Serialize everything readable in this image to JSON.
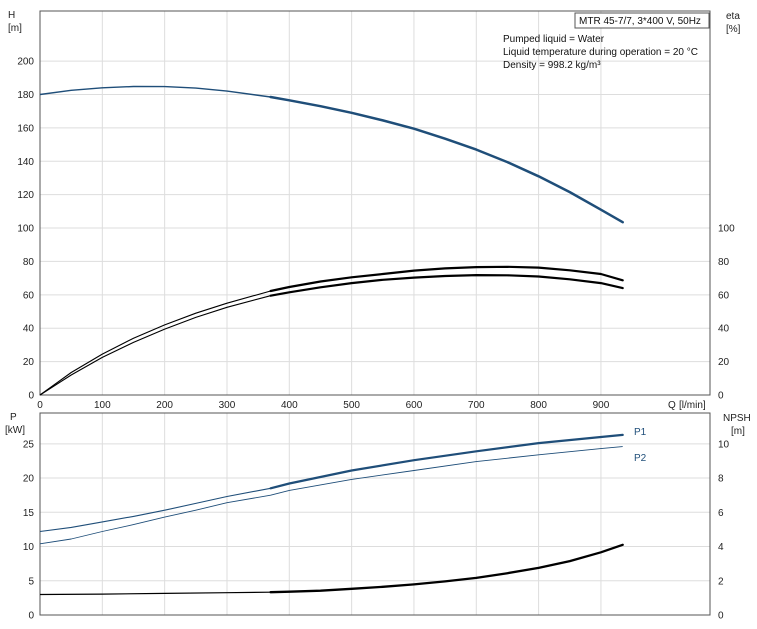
{
  "pump_info": {
    "model": "MTR 45-7/7, 3*400 V, 50Hz",
    "lines": [
      "Pumped liquid = Water",
      "Liquid temperature during operation = 20 °C",
      "Density = 998.2 kg/m³"
    ]
  },
  "colors": {
    "blue": "#1f4e79",
    "black": "#000000",
    "grid": "#dddddd",
    "axis": "#555555"
  },
  "chart_data": [
    {
      "type": "line",
      "name": "upper",
      "x_axis": {
        "label_parts": [
          "Q",
          "[l/min]"
        ],
        "range": [
          0,
          1075
        ],
        "ticks": [
          0,
          100,
          200,
          300,
          400,
          500,
          600,
          700,
          800,
          900
        ]
      },
      "y_left": {
        "label_parts": [
          "H",
          "[m]"
        ],
        "range": [
          0,
          230
        ],
        "ticks": [
          0,
          20,
          40,
          60,
          80,
          100,
          120,
          140,
          160,
          180,
          200
        ]
      },
      "y_right": {
        "label_parts": [
          "eta",
          "[%]"
        ],
        "range": [
          0,
          230
        ],
        "ticks": [
          0,
          20,
          40,
          60,
          80,
          100
        ]
      },
      "grid": true,
      "series": [
        {
          "id": "H",
          "axis": "left",
          "color_key": "blue",
          "width": 1.4,
          "bold_from": 370,
          "points": [
            [
              0,
              180
            ],
            [
              50,
              182.5
            ],
            [
              100,
              184
            ],
            [
              150,
              184.8
            ],
            [
              200,
              184.7
            ],
            [
              250,
              183.8
            ],
            [
              300,
              182
            ],
            [
              370,
              178.5
            ],
            [
              400,
              176.5
            ],
            [
              450,
              173
            ],
            [
              500,
              169
            ],
            [
              550,
              164.5
            ],
            [
              600,
              159.5
            ],
            [
              650,
              153.5
            ],
            [
              700,
              147
            ],
            [
              750,
              139.5
            ],
            [
              800,
              131
            ],
            [
              850,
              121.5
            ],
            [
              900,
              111
            ],
            [
              935,
              103.5
            ]
          ]
        },
        {
          "id": "eta",
          "axis": "right",
          "color_key": "black",
          "width": 1.1,
          "bold_from": 370,
          "points": [
            [
              0,
              0
            ],
            [
              50,
              12
            ],
            [
              100,
              22.5
            ],
            [
              150,
              31.5
            ],
            [
              200,
              39.5
            ],
            [
              250,
              46.5
            ],
            [
              300,
              52.5
            ],
            [
              370,
              59.5
            ],
            [
              400,
              61.5
            ],
            [
              450,
              64.5
            ],
            [
              500,
              67
            ],
            [
              550,
              69
            ],
            [
              600,
              70.3
            ],
            [
              650,
              71.3
            ],
            [
              700,
              71.8
            ],
            [
              750,
              71.7
            ],
            [
              800,
              71
            ],
            [
              850,
              69.3
            ],
            [
              900,
              67
            ],
            [
              935,
              64
            ]
          ]
        },
        {
          "id": "eta-upper",
          "axis": "right",
          "color_key": "black",
          "width": 1.1,
          "bold_from": 370,
          "points": [
            [
              0,
              0
            ],
            [
              50,
              13.5
            ],
            [
              100,
              24.5
            ],
            [
              150,
              34
            ],
            [
              200,
              42
            ],
            [
              250,
              49
            ],
            [
              300,
              55
            ],
            [
              370,
              62.3
            ],
            [
              400,
              64.7
            ],
            [
              450,
              68
            ],
            [
              500,
              70.5
            ],
            [
              550,
              72.5
            ],
            [
              600,
              74.5
            ],
            [
              650,
              75.8
            ],
            [
              700,
              76.6
            ],
            [
              750,
              76.8
            ],
            [
              800,
              76.3
            ],
            [
              850,
              74.7
            ],
            [
              900,
              72.5
            ],
            [
              935,
              68.7
            ]
          ]
        }
      ]
    },
    {
      "type": "line",
      "name": "lower",
      "x_axis": {
        "range": [
          0,
          1075
        ],
        "ticks": [
          0,
          100,
          200,
          300,
          400,
          500,
          600,
          700,
          800,
          900
        ]
      },
      "y_left": {
        "label_parts": [
          "P",
          "[kW]"
        ],
        "range": [
          0,
          29.5
        ],
        "ticks": [
          0,
          5,
          10,
          15,
          20,
          25
        ]
      },
      "y_right": {
        "label_parts": [
          "NPSH",
          "[m]"
        ],
        "range": [
          0,
          11.8
        ],
        "ticks": [
          0,
          2,
          4,
          6,
          8,
          10
        ]
      },
      "grid": true,
      "series": [
        {
          "id": "P1",
          "name": "P1",
          "axis": "left",
          "color_key": "blue",
          "width": 1.1,
          "bold_from": 370,
          "points": [
            [
              0,
              12.2
            ],
            [
              50,
              12.8
            ],
            [
              100,
              13.6
            ],
            [
              150,
              14.4
            ],
            [
              200,
              15.3
            ],
            [
              250,
              16.3
            ],
            [
              300,
              17.3
            ],
            [
              370,
              18.5
            ],
            [
              400,
              19.2
            ],
            [
              500,
              21.1
            ],
            [
              600,
              22.6
            ],
            [
              700,
              23.9
            ],
            [
              800,
              25.1
            ],
            [
              900,
              26
            ],
            [
              935,
              26.3
            ]
          ]
        },
        {
          "id": "P2",
          "name": "P2",
          "axis": "left",
          "color_key": "blue",
          "width": 0.9,
          "bold_from": 9999,
          "points": [
            [
              0,
              10.4
            ],
            [
              50,
              11.1
            ],
            [
              100,
              12.2
            ],
            [
              150,
              13.2
            ],
            [
              200,
              14.3
            ],
            [
              250,
              15.3
            ],
            [
              300,
              16.4
            ],
            [
              370,
              17.5
            ],
            [
              400,
              18.2
            ],
            [
              500,
              19.8
            ],
            [
              600,
              21.1
            ],
            [
              700,
              22.4
            ],
            [
              800,
              23.4
            ],
            [
              900,
              24.3
            ],
            [
              935,
              24.6
            ]
          ]
        },
        {
          "id": "NPSH",
          "axis": "right",
          "color_key": "black",
          "width": 1.2,
          "bold_from": 370,
          "points": [
            [
              0,
              1.2
            ],
            [
              100,
              1.22
            ],
            [
              200,
              1.26
            ],
            [
              300,
              1.3
            ],
            [
              370,
              1.33
            ],
            [
              400,
              1.36
            ],
            [
              450,
              1.42
            ],
            [
              500,
              1.53
            ],
            [
              550,
              1.65
            ],
            [
              600,
              1.79
            ],
            [
              650,
              1.96
            ],
            [
              700,
              2.17
            ],
            [
              750,
              2.44
            ],
            [
              800,
              2.75
            ],
            [
              850,
              3.15
            ],
            [
              900,
              3.66
            ],
            [
              935,
              4.1
            ]
          ]
        }
      ]
    }
  ]
}
